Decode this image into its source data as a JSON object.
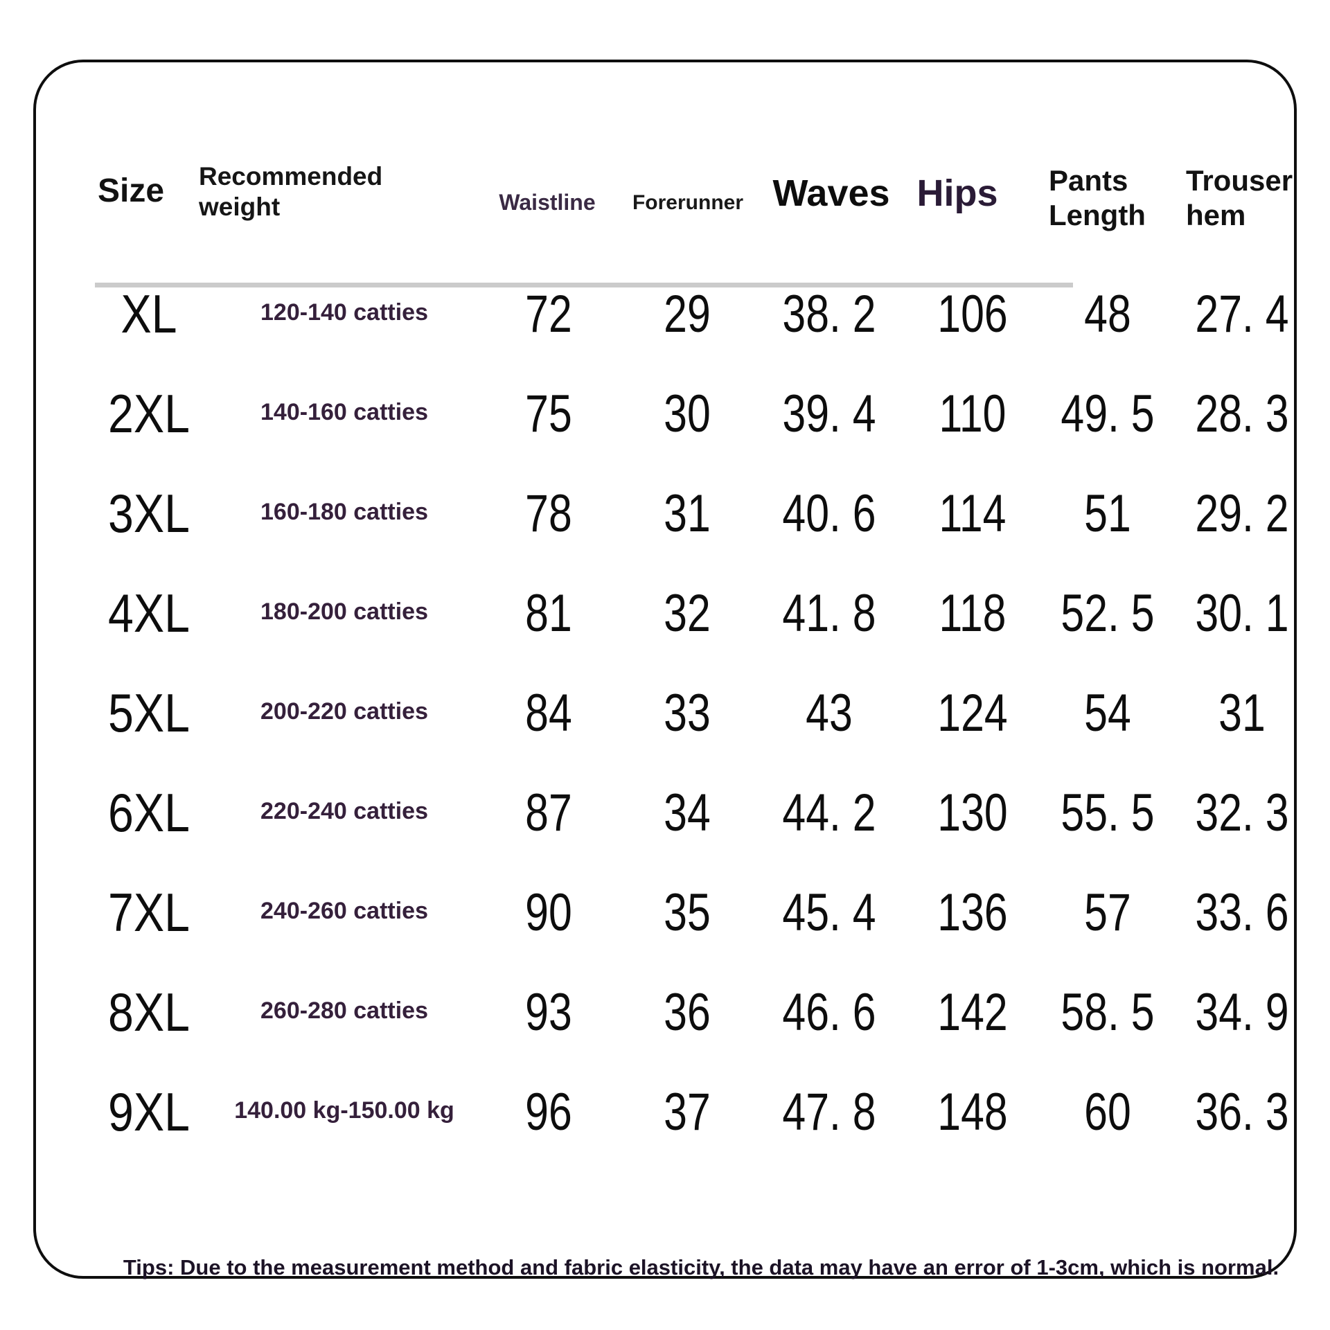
{
  "page": {
    "tips": "Tips: Due to the measurement method and fabric elasticity, the data may have an error of 1-3cm, which is normal."
  },
  "table": {
    "headers": {
      "size": "Size",
      "weight": "Recommended weight",
      "waistline": "Waistline",
      "forerunner": "Forerunner",
      "waves": "Waves",
      "hips": "Hips",
      "pants_length": "Pants Length",
      "trouser_hem": "Trouser hem"
    },
    "rows": [
      {
        "size": "XL",
        "weight": "120-140 catties",
        "waistline": "72",
        "forerunner": "29",
        "waves": "38. 2",
        "hips": "106",
        "pants_length": "48",
        "trouser_hem": "27. 4"
      },
      {
        "size": "2XL",
        "weight": "140-160 catties",
        "waistline": "75",
        "forerunner": "30",
        "waves": "39. 4",
        "hips": "110",
        "pants_length": "49. 5",
        "trouser_hem": "28. 3"
      },
      {
        "size": "3XL",
        "weight": "160-180 catties",
        "waistline": "78",
        "forerunner": "31",
        "waves": "40. 6",
        "hips": "114",
        "pants_length": "51",
        "trouser_hem": "29. 2"
      },
      {
        "size": "4XL",
        "weight": "180-200 catties",
        "waistline": "81",
        "forerunner": "32",
        "waves": "41. 8",
        "hips": "118",
        "pants_length": "52. 5",
        "trouser_hem": "30. 1"
      },
      {
        "size": "5XL",
        "weight": "200-220 catties",
        "waistline": "84",
        "forerunner": "33",
        "waves": "43",
        "hips": "124",
        "pants_length": "54",
        "trouser_hem": "31"
      },
      {
        "size": "6XL",
        "weight": "220-240 catties",
        "waistline": "87",
        "forerunner": "34",
        "waves": "44. 2",
        "hips": "130",
        "pants_length": "55. 5",
        "trouser_hem": "32. 3"
      },
      {
        "size": "7XL",
        "weight": "240-260 catties",
        "waistline": "90",
        "forerunner": "35",
        "waves": "45. 4",
        "hips": "136",
        "pants_length": "57",
        "trouser_hem": "33. 6"
      },
      {
        "size": "8XL",
        "weight": "260-280 catties",
        "waistline": "93",
        "forerunner": "36",
        "waves": "46. 6",
        "hips": "142",
        "pants_length": "58. 5",
        "trouser_hem": "34. 9"
      },
      {
        "size": "9XL",
        "weight": "140.00 kg-150.00 kg",
        "waistline": "96",
        "forerunner": "37",
        "waves": "47. 8",
        "hips": "148",
        "pants_length": "60",
        "trouser_hem": "36. 3"
      }
    ]
  },
  "chart_data": {
    "type": "table",
    "title": "Size chart",
    "columns": [
      "Size",
      "Recommended weight",
      "Waistline",
      "Forerunner",
      "Waves",
      "Hips",
      "Pants Length",
      "Trouser hem"
    ],
    "rows": [
      [
        "XL",
        "120-140 catties",
        72,
        29,
        38.2,
        106,
        48,
        27.4
      ],
      [
        "2XL",
        "140-160 catties",
        75,
        30,
        39.4,
        110,
        49.5,
        28.3
      ],
      [
        "3XL",
        "160-180 catties",
        78,
        31,
        40.6,
        114,
        51,
        29.2
      ],
      [
        "4XL",
        "180-200 catties",
        81,
        32,
        41.8,
        118,
        52.5,
        30.1
      ],
      [
        "5XL",
        "200-220 catties",
        84,
        33,
        43,
        124,
        54,
        31
      ],
      [
        "6XL",
        "220-240 catties",
        87,
        34,
        44.2,
        130,
        55.5,
        32.3
      ],
      [
        "7XL",
        "240-260 catties",
        90,
        35,
        45.4,
        136,
        57,
        33.6
      ],
      [
        "8XL",
        "260-280 catties",
        93,
        36,
        46.6,
        142,
        58.5,
        34.9
      ],
      [
        "9XL",
        "140.00 kg-150.00 kg",
        96,
        37,
        47.8,
        148,
        60,
        36.3
      ]
    ],
    "footnote": "Tips: Due to the measurement method and fabric elasticity, the data may have an error of 1-3cm, which is normal."
  },
  "colors": {
    "background": "#ffffff",
    "border": "#0e0e0e",
    "text_black": "#0d0d0d",
    "accent_purple": "#35203b",
    "divider_gray": "#cbcbcb"
  }
}
